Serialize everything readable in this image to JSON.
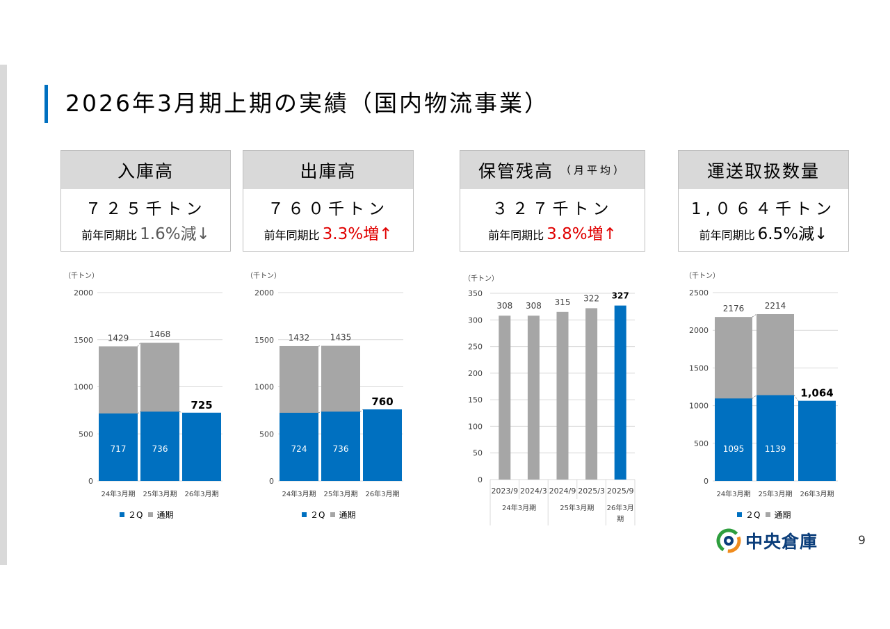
{
  "title": "2026年3月期上期の実績（国内物流事業）",
  "kpis": [
    {
      "head": "入庫高",
      "sub": "",
      "value": "７２５千トン",
      "cmp_label": "前年同期比",
      "rate": "1.6%減↓",
      "rate_color": "#595959"
    },
    {
      "head": "出庫高",
      "sub": "",
      "value": "７６０千トン",
      "cmp_label": "前年同期比",
      "rate": "3.3%増↑",
      "rate_color": "#e00000"
    },
    {
      "head": "保管残高",
      "sub": "（月平均）",
      "value": "３２７千トン",
      "cmp_label": "前年同期比",
      "rate": "3.8%増↑",
      "rate_color": "#e00000"
    },
    {
      "head": "運送取扱数量",
      "sub": "",
      "value": "1,０６４千トン",
      "cmp_label": "前年同期比",
      "rate": "6.5%減↓",
      "rate_color": "#000000"
    }
  ],
  "colors": {
    "q2": "#0070c0",
    "full": "#a6a6a6",
    "grid": "#d9d9d9",
    "axis_text": "#404040"
  },
  "chart_data": [
    {
      "type": "bar",
      "unit_label": "（千トン）",
      "categories": [
        "24年3月期",
        "25年3月期",
        "26年3月期"
      ],
      "ylim": [
        0,
        2000
      ],
      "yticks": [
        0,
        500,
        1000,
        1500,
        2000
      ],
      "series": [
        {
          "name": "２Q",
          "values": [
            717,
            736,
            725
          ],
          "labels": [
            "717",
            "736",
            "725"
          ]
        },
        {
          "name": "通期",
          "values": [
            1429,
            1468,
            null
          ],
          "labels": [
            "1429",
            "1468",
            ""
          ]
        }
      ],
      "legend": "bottom"
    },
    {
      "type": "bar",
      "unit_label": "（千トン）",
      "categories": [
        "24年3月期",
        "25年3月期",
        "26年3月期"
      ],
      "ylim": [
        0,
        2000
      ],
      "yticks": [
        0,
        500,
        1000,
        1500,
        2000
      ],
      "series": [
        {
          "name": "２Q",
          "values": [
            724,
            736,
            760
          ],
          "labels": [
            "724",
            "736",
            "760"
          ]
        },
        {
          "name": "通期",
          "values": [
            1432,
            1435,
            null
          ],
          "labels": [
            "1432",
            "1435",
            ""
          ]
        }
      ],
      "legend": "bottom"
    },
    {
      "type": "bar",
      "unit_label": "（千トン）",
      "categories": [
        "2023/9",
        "2024/3",
        "2024/9",
        "2025/3",
        "2025/9"
      ],
      "groups": [
        {
          "label": "24年3月期",
          "span": 2
        },
        {
          "label": "25年3月期",
          "span": 2
        },
        {
          "label": "26年3月期",
          "span": 1
        }
      ],
      "ylim": [
        0,
        350
      ],
      "yticks": [
        0,
        50,
        100,
        150,
        200,
        250,
        300,
        350
      ],
      "values": [
        308,
        308,
        315,
        322,
        327
      ],
      "labels": [
        "308",
        "308",
        "315",
        "322",
        "327"
      ],
      "bar_colors": [
        "full",
        "full",
        "full",
        "full",
        "q2"
      ]
    },
    {
      "type": "bar",
      "unit_label": "（千トン）",
      "categories": [
        "24年3月期",
        "25年3月期",
        "26年3月期"
      ],
      "ylim": [
        0,
        2500
      ],
      "yticks": [
        0,
        500,
        1000,
        1500,
        2000,
        2500
      ],
      "series": [
        {
          "name": "２Q",
          "values": [
            1095,
            1139,
            1064
          ],
          "labels": [
            "1095",
            "1139",
            "1,064"
          ]
        },
        {
          "name": "通期",
          "values": [
            2176,
            2214,
            null
          ],
          "labels": [
            "2176",
            "2214",
            ""
          ]
        }
      ],
      "legend": "bottom"
    }
  ],
  "logo_text": "中央倉庫",
  "page_number": "9"
}
